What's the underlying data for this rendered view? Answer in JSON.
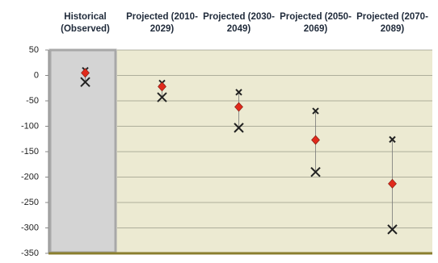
{
  "chart_data": {
    "type": "range-marker",
    "categories": [
      "Historical (Observed)",
      "Projected (2010-2029)",
      "Projected (2030-2049)",
      "Projected (2050-2069)",
      "Projected (2070-2089)"
    ],
    "series": [
      {
        "marker": "x-small",
        "color": "#222222",
        "values": [
          10,
          -15,
          -33,
          -70,
          -126
        ]
      },
      {
        "marker": "diamond",
        "color": "#e02a1c",
        "values": [
          5,
          -22,
          -62,
          -127,
          -213
        ]
      },
      {
        "marker": "x-large",
        "color": "#222222",
        "values": [
          -13,
          -43,
          -103,
          -190,
          -303
        ]
      }
    ],
    "ylim": [
      -350,
      50
    ],
    "yticks": [
      50,
      0,
      -50,
      -100,
      -150,
      -200,
      -250,
      -300,
      -350
    ],
    "grid": true
  }
}
